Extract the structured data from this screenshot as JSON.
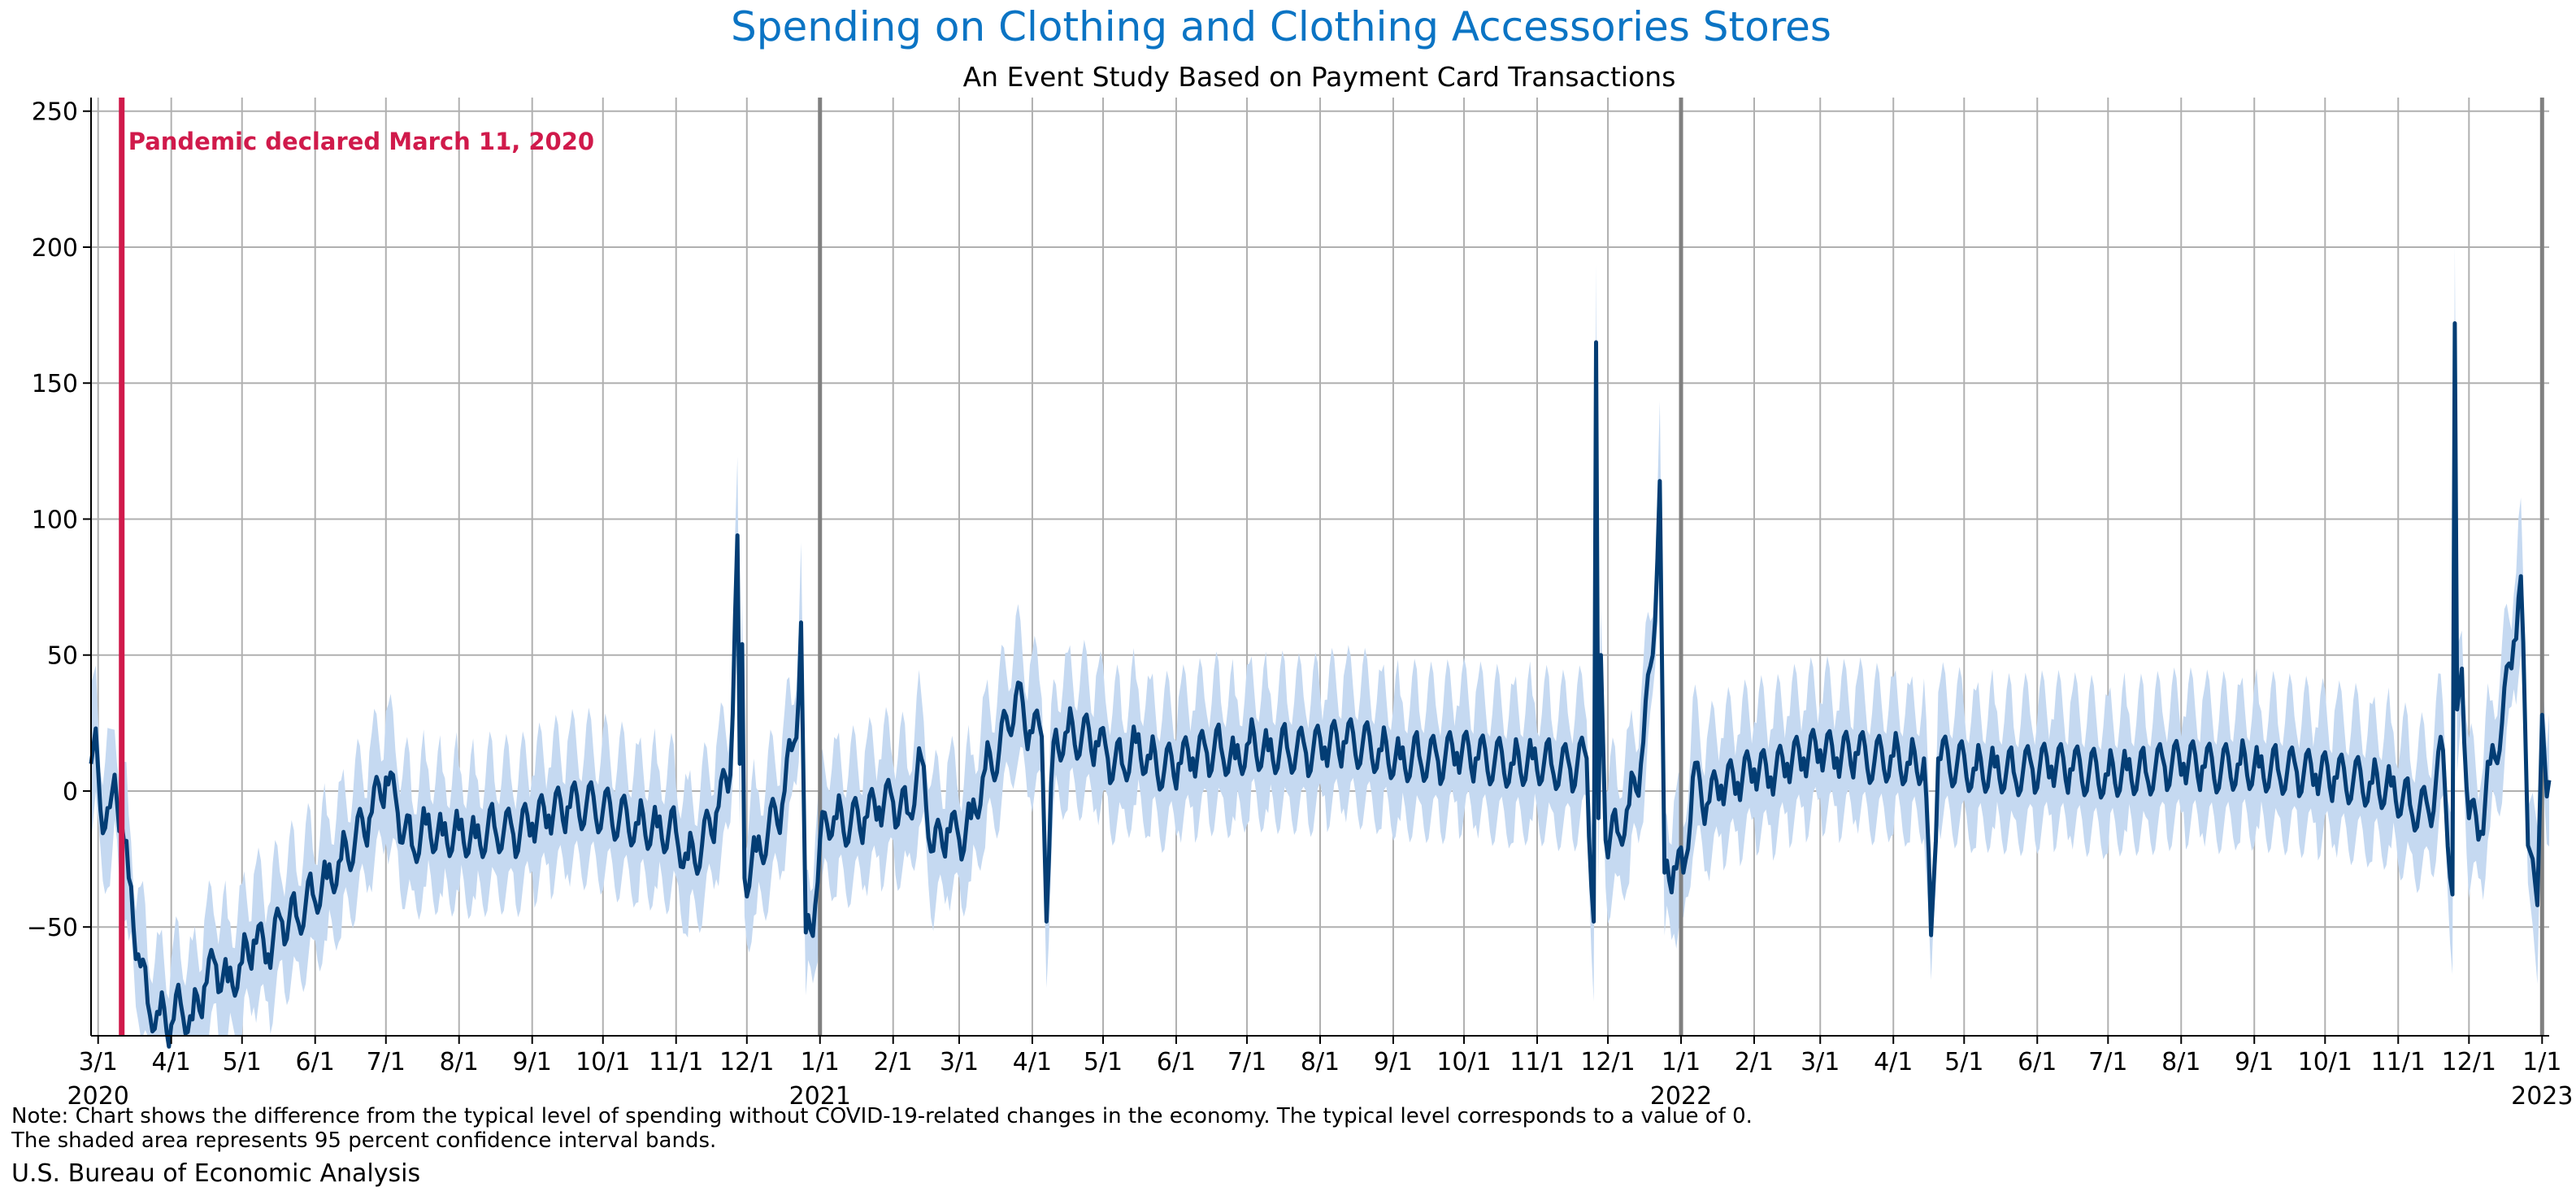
{
  "chart_data": {
    "type": "line",
    "title": "Spending on Clothing and Clothing Accessories Stores",
    "subtitle": "An Event Study Based on Payment Card Transactions",
    "xlabel": "",
    "ylabel": "",
    "ylim": [
      -90,
      255
    ],
    "yticks": [
      -50,
      0,
      50,
      100,
      150,
      200,
      250
    ],
    "ytick_labels": [
      "−50",
      "0",
      "50",
      "100",
      "150",
      "200",
      "250"
    ],
    "xlim": [
      "2020-02-27",
      "2023-01-04"
    ],
    "grid": true,
    "colors": {
      "title": "#0b74c4",
      "line": "#033d74",
      "band": "#c5d9f1",
      "event": "#d01a4b",
      "grid": "#b0b0b0",
      "year_line": "#808080"
    },
    "xticks": [
      {
        "date": "2020-03-01",
        "label": "3/1",
        "year": "2020"
      },
      {
        "date": "2020-04-01",
        "label": "4/1"
      },
      {
        "date": "2020-05-01",
        "label": "5/1"
      },
      {
        "date": "2020-06-01",
        "label": "6/1"
      },
      {
        "date": "2020-07-01",
        "label": "7/1"
      },
      {
        "date": "2020-08-01",
        "label": "8/1"
      },
      {
        "date": "2020-09-01",
        "label": "9/1"
      },
      {
        "date": "2020-10-01",
        "label": "10/1"
      },
      {
        "date": "2020-11-01",
        "label": "11/1"
      },
      {
        "date": "2020-12-01",
        "label": "12/1"
      },
      {
        "date": "2021-01-01",
        "label": "1/1",
        "year": "2021"
      },
      {
        "date": "2021-02-01",
        "label": "2/1"
      },
      {
        "date": "2021-03-01",
        "label": "3/1"
      },
      {
        "date": "2021-04-01",
        "label": "4/1"
      },
      {
        "date": "2021-05-01",
        "label": "5/1"
      },
      {
        "date": "2021-06-01",
        "label": "6/1"
      },
      {
        "date": "2021-07-01",
        "label": "7/1"
      },
      {
        "date": "2021-08-01",
        "label": "8/1"
      },
      {
        "date": "2021-09-01",
        "label": "9/1"
      },
      {
        "date": "2021-10-01",
        "label": "10/1"
      },
      {
        "date": "2021-11-01",
        "label": "11/1"
      },
      {
        "date": "2021-12-01",
        "label": "12/1"
      },
      {
        "date": "2022-01-01",
        "label": "1/1",
        "year": "2022"
      },
      {
        "date": "2022-02-01",
        "label": "2/1"
      },
      {
        "date": "2022-03-01",
        "label": "3/1"
      },
      {
        "date": "2022-04-01",
        "label": "4/1"
      },
      {
        "date": "2022-05-01",
        "label": "5/1"
      },
      {
        "date": "2022-06-01",
        "label": "6/1"
      },
      {
        "date": "2022-07-01",
        "label": "7/1"
      },
      {
        "date": "2022-08-01",
        "label": "8/1"
      },
      {
        "date": "2022-09-01",
        "label": "9/1"
      },
      {
        "date": "2022-10-01",
        "label": "10/1"
      },
      {
        "date": "2022-11-01",
        "label": "11/1"
      },
      {
        "date": "2022-12-01",
        "label": "12/1"
      },
      {
        "date": "2023-01-01",
        "label": "1/1",
        "year": "2023"
      }
    ],
    "year_lines": [
      "2021-01-01",
      "2022-01-01",
      "2023-01-01"
    ],
    "event": {
      "date": "2020-03-11",
      "label": "Pandemic declared March 11, 2020"
    },
    "series": [
      {
        "type": "line",
        "points": [
          [
            "2020-02-27",
            10
          ],
          [
            "2020-02-29",
            23
          ],
          [
            "2020-03-02",
            -7
          ],
          [
            "2020-03-06",
            -6
          ],
          [
            "2020-03-08",
            6
          ],
          [
            "2020-03-11",
            -12
          ],
          [
            "2020-03-14",
            -32
          ],
          [
            "2020-03-18",
            -60
          ],
          [
            "2020-03-22",
            -78
          ],
          [
            "2020-03-27",
            -82
          ],
          [
            "2020-04-01",
            -86
          ],
          [
            "2020-04-05",
            -78
          ],
          [
            "2020-04-10",
            -84
          ],
          [
            "2020-04-15",
            -72
          ],
          [
            "2020-04-20",
            -64
          ],
          [
            "2020-04-25",
            -70
          ],
          [
            "2020-05-01",
            -63
          ],
          [
            "2020-05-06",
            -55
          ],
          [
            "2020-05-12",
            -60
          ],
          [
            "2020-05-18",
            -48
          ],
          [
            "2020-05-24",
            -46
          ],
          [
            "2020-05-31",
            -38
          ],
          [
            "2020-06-06",
            -32
          ],
          [
            "2020-06-12",
            -25
          ],
          [
            "2020-06-18",
            -18
          ],
          [
            "2020-06-24",
            -10
          ],
          [
            "2020-07-01",
            5
          ],
          [
            "2020-07-06",
            -8
          ],
          [
            "2020-07-12",
            -20
          ],
          [
            "2020-07-18",
            -12
          ],
          [
            "2020-07-25",
            -16
          ],
          [
            "2020-08-01",
            -14
          ],
          [
            "2020-08-08",
            -17
          ],
          [
            "2020-08-16",
            -13
          ],
          [
            "2020-08-24",
            -16
          ],
          [
            "2020-09-01",
            -12
          ],
          [
            "2020-09-08",
            -9
          ],
          [
            "2020-09-16",
            -6
          ],
          [
            "2020-09-24",
            -5
          ],
          [
            "2020-10-01",
            -7
          ],
          [
            "2020-10-08",
            -10
          ],
          [
            "2020-10-16",
            -12
          ],
          [
            "2020-10-24",
            -13
          ],
          [
            "2020-11-01",
            -15
          ],
          [
            "2020-11-06",
            -25
          ],
          [
            "2020-11-12",
            -20
          ],
          [
            "2020-11-18",
            -8
          ],
          [
            "2020-11-24",
            6
          ],
          [
            "2020-11-27",
            94
          ],
          [
            "2020-11-28",
            10
          ],
          [
            "2020-11-29",
            54
          ],
          [
            "2020-11-30",
            -32
          ],
          [
            "2020-12-05",
            -22
          ],
          [
            "2020-12-10",
            -15
          ],
          [
            "2020-12-16",
            -5
          ],
          [
            "2020-12-20",
            15
          ],
          [
            "2020-12-23",
            35
          ],
          [
            "2020-12-24",
            62
          ],
          [
            "2020-12-26",
            -52
          ],
          [
            "2020-12-30",
            -42
          ],
          [
            "2021-01-03",
            -8
          ],
          [
            "2021-01-08",
            -10
          ],
          [
            "2021-01-14",
            -12
          ],
          [
            "2021-01-20",
            -10
          ],
          [
            "2021-01-26",
            -6
          ],
          [
            "2021-02-01",
            -4
          ],
          [
            "2021-02-07",
            -8
          ],
          [
            "2021-02-13",
            12
          ],
          [
            "2021-02-18",
            -22
          ],
          [
            "2021-02-24",
            -14
          ],
          [
            "2021-03-01",
            -18
          ],
          [
            "2021-03-06",
            -10
          ],
          [
            "2021-03-12",
            8
          ],
          [
            "2021-03-18",
            15
          ],
          [
            "2021-03-25",
            35
          ],
          [
            "2021-03-31",
            22
          ],
          [
            "2021-04-05",
            20
          ],
          [
            "2021-04-07",
            -48
          ],
          [
            "2021-04-10",
            18
          ],
          [
            "2021-04-16",
            22
          ],
          [
            "2021-04-22",
            20
          ],
          [
            "2021-04-28",
            18
          ],
          [
            "2021-05-03",
            12
          ],
          [
            "2021-05-09",
            10
          ],
          [
            "2021-05-15",
            18
          ],
          [
            "2021-05-21",
            12
          ],
          [
            "2021-05-27",
            8
          ],
          [
            "2021-06-02",
            10
          ],
          [
            "2021-06-08",
            12
          ],
          [
            "2021-06-14",
            14
          ],
          [
            "2021-06-20",
            16
          ],
          [
            "2021-06-26",
            12
          ],
          [
            "2021-07-02",
            18
          ],
          [
            "2021-07-10",
            15
          ],
          [
            "2021-07-18",
            16
          ],
          [
            "2021-07-26",
            14
          ],
          [
            "2021-08-03",
            16
          ],
          [
            "2021-08-11",
            18
          ],
          [
            "2021-08-19",
            17
          ],
          [
            "2021-08-27",
            15
          ],
          [
            "2021-09-04",
            12
          ],
          [
            "2021-09-12",
            13
          ],
          [
            "2021-09-20",
            11
          ],
          [
            "2021-09-28",
            14
          ],
          [
            "2021-10-06",
            12
          ],
          [
            "2021-10-14",
            11
          ],
          [
            "2021-10-22",
            10
          ],
          [
            "2021-10-30",
            12
          ],
          [
            "2021-11-07",
            10
          ],
          [
            "2021-11-15",
            8
          ],
          [
            "2021-11-22",
            12
          ],
          [
            "2021-11-25",
            -48
          ],
          [
            "2021-11-26",
            165
          ],
          [
            "2021-11-27",
            -10
          ],
          [
            "2021-11-28",
            50
          ],
          [
            "2021-11-30",
            -18
          ],
          [
            "2021-12-05",
            -15
          ],
          [
            "2021-12-10",
            -5
          ],
          [
            "2021-12-15",
            10
          ],
          [
            "2021-12-20",
            50
          ],
          [
            "2021-12-23",
            114
          ],
          [
            "2021-12-25",
            -30
          ],
          [
            "2021-12-29",
            -28
          ],
          [
            "2022-01-02",
            -30
          ],
          [
            "2022-01-06",
            5
          ],
          [
            "2022-01-12",
            -5
          ],
          [
            "2022-01-18",
            2
          ],
          [
            "2022-01-25",
            3
          ],
          [
            "2022-02-01",
            8
          ],
          [
            "2022-02-08",
            5
          ],
          [
            "2022-02-15",
            10
          ],
          [
            "2022-02-22",
            12
          ],
          [
            "2022-03-01",
            15
          ],
          [
            "2022-03-08",
            12
          ],
          [
            "2022-03-16",
            14
          ],
          [
            "2022-03-24",
            11
          ],
          [
            "2022-04-01",
            13
          ],
          [
            "2022-04-08",
            10
          ],
          [
            "2022-04-14",
            12
          ],
          [
            "2022-04-17",
            -53
          ],
          [
            "2022-04-20",
            12
          ],
          [
            "2022-04-28",
            10
          ],
          [
            "2022-05-06",
            8
          ],
          [
            "2022-05-14",
            9
          ],
          [
            "2022-05-22",
            7
          ],
          [
            "2022-05-30",
            8
          ],
          [
            "2022-06-07",
            9
          ],
          [
            "2022-06-15",
            8
          ],
          [
            "2022-06-23",
            7
          ],
          [
            "2022-07-01",
            6
          ],
          [
            "2022-07-09",
            8
          ],
          [
            "2022-07-17",
            7
          ],
          [
            "2022-07-25",
            9
          ],
          [
            "2022-08-02",
            10
          ],
          [
            "2022-08-10",
            9
          ],
          [
            "2022-08-18",
            8
          ],
          [
            "2022-08-26",
            10
          ],
          [
            "2022-09-03",
            9
          ],
          [
            "2022-09-11",
            8
          ],
          [
            "2022-09-19",
            7
          ],
          [
            "2022-09-27",
            6
          ],
          [
            "2022-10-05",
            5
          ],
          [
            "2022-10-13",
            4
          ],
          [
            "2022-10-21",
            3
          ],
          [
            "2022-10-29",
            2
          ],
          [
            "2022-11-06",
            -5
          ],
          [
            "2022-11-14",
            -8
          ],
          [
            "2022-11-20",
            15
          ],
          [
            "2022-11-24",
            -38
          ],
          [
            "2022-11-25",
            172
          ],
          [
            "2022-11-26",
            30
          ],
          [
            "2022-11-28",
            45
          ],
          [
            "2022-12-01",
            -10
          ],
          [
            "2022-12-06",
            -15
          ],
          [
            "2022-12-10",
            10
          ],
          [
            "2022-12-15",
            25
          ],
          [
            "2022-12-20",
            55
          ],
          [
            "2022-12-23",
            79
          ],
          [
            "2022-12-26",
            -20
          ],
          [
            "2022-12-28",
            -25
          ],
          [
            "2022-12-30",
            -42
          ],
          [
            "2023-01-01",
            28
          ],
          [
            "2023-01-03",
            -2
          ],
          [
            "2023-01-04",
            4
          ]
        ]
      }
    ]
  },
  "note": {
    "line1": "Note: Chart shows the difference from the typical level of spending without COVID-19-related changes in the economy. The typical level corresponds to a value of 0.",
    "line2": "The shaded area represents 95 percent confidence interval bands."
  },
  "source": "U.S. Bureau of Economic Analysis"
}
